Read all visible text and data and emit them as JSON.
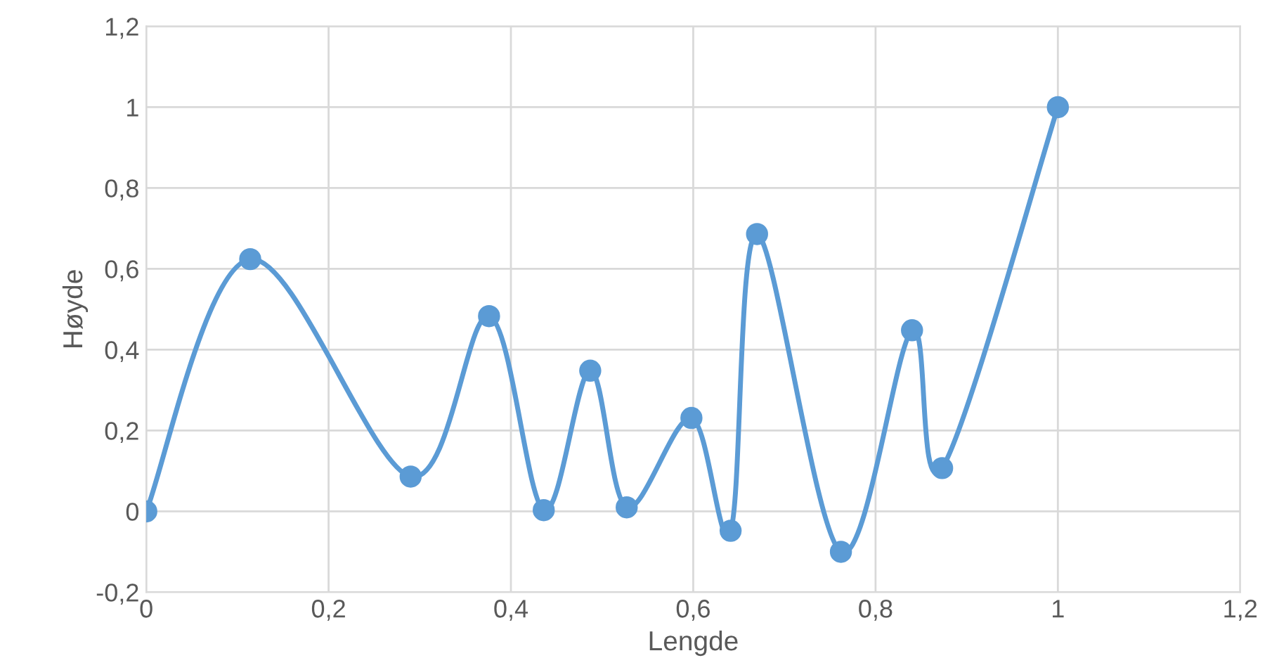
{
  "chart_data": {
    "type": "line",
    "xlabel": "Lengde",
    "ylabel": "Høyde",
    "x": [
      0,
      0.114,
      0.29,
      0.376,
      0.436,
      0.487,
      0.527,
      0.598,
      0.641,
      0.67,
      0.762,
      0.84,
      0.873,
      1
    ],
    "series": [
      {
        "color": "#5b9bd5",
        "values": [
          0,
          0.624,
          0.086,
          0.483,
          0.003,
          0.348,
          0.01,
          0.231,
          -0.048,
          0.686,
          -0.1,
          0.448,
          0.107,
          1
        ]
      }
    ],
    "xlim": [
      0,
      1.2
    ],
    "ylim": [
      -0.2,
      1.2
    ],
    "xticks": [
      0,
      {
        "value": 0.2,
        "label": "0,2"
      },
      {
        "value": 0.4,
        "label": "0,4"
      },
      {
        "value": 0.6,
        "label": "0,6"
      },
      {
        "value": 0.8,
        "label": "0,8"
      },
      1,
      {
        "value": 1.2,
        "label": "1,2"
      }
    ],
    "yticks": [
      {
        "value": -0.2,
        "label": "-0,2"
      },
      0,
      {
        "value": 0.2,
        "label": "0,2"
      },
      {
        "value": 0.4,
        "label": "0,4"
      },
      {
        "value": 0.6,
        "label": "0,6"
      },
      {
        "value": 0.8,
        "label": "0,8"
      },
      1,
      {
        "value": 1.2,
        "label": "1,2"
      }
    ],
    "grid": true,
    "marker": "circle",
    "line_style": "solid"
  }
}
